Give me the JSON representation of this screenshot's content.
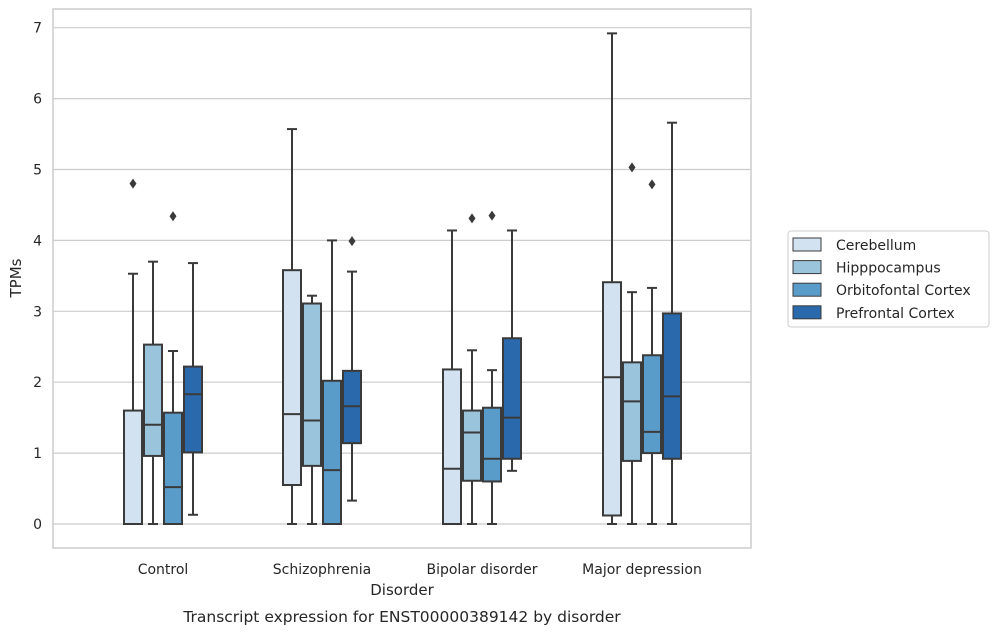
{
  "chart_data": {
    "type": "boxplot",
    "title": "",
    "caption": "Transcript expression for ENST00000389142 by disorder",
    "xlabel": "Disorder",
    "ylabel": "TPMs",
    "ylim": [
      -0.33,
      7.3
    ],
    "yticks": [
      0,
      1,
      2,
      3,
      4,
      5,
      6,
      7
    ],
    "grid": "horizontal",
    "legend_position": "right",
    "categories": [
      "Control",
      "Schizophrenia",
      "Bipolar disorder",
      "Major depression"
    ],
    "series": [
      {
        "name": "Cerebellum",
        "color": "#d2e2f1",
        "boxes": [
          {
            "whisker_low": 0,
            "q1": 0,
            "median": 0,
            "q3": 1.6,
            "whisker_high": 3.53,
            "outliers": [
              4.8
            ]
          },
          {
            "whisker_low": 0,
            "q1": 0.55,
            "median": 1.55,
            "q3": 3.58,
            "whisker_high": 5.57,
            "outliers": []
          },
          {
            "whisker_low": 0,
            "q1": 0,
            "median": 0.78,
            "q3": 2.18,
            "whisker_high": 4.14,
            "outliers": []
          },
          {
            "whisker_low": 0,
            "q1": 0.12,
            "median": 2.07,
            "q3": 3.41,
            "whisker_high": 6.92,
            "outliers": []
          }
        ]
      },
      {
        "name": "Hipppocampus",
        "color": "#9ac3dc",
        "boxes": [
          {
            "whisker_low": 0,
            "q1": 0.96,
            "median": 1.4,
            "q3": 2.53,
            "whisker_high": 3.7,
            "outliers": []
          },
          {
            "whisker_low": 0,
            "q1": 0.82,
            "median": 1.46,
            "q3": 3.11,
            "whisker_high": 3.22,
            "outliers": []
          },
          {
            "whisker_low": 0,
            "q1": 0.61,
            "median": 1.29,
            "q3": 1.6,
            "whisker_high": 2.45,
            "outliers": [
              4.31
            ]
          },
          {
            "whisker_low": 0,
            "q1": 0.89,
            "median": 1.73,
            "q3": 2.28,
            "whisker_high": 3.27,
            "outliers": [
              5.03
            ]
          }
        ]
      },
      {
        "name": "Orbitofontal Cortex",
        "color": "#5a9cc9",
        "boxes": [
          {
            "whisker_low": 0,
            "q1": 0,
            "median": 0.52,
            "q3": 1.57,
            "whisker_high": 2.44,
            "outliers": [
              4.34
            ]
          },
          {
            "whisker_low": 0,
            "q1": 0,
            "median": 0.76,
            "q3": 2.02,
            "whisker_high": 4.0,
            "outliers": []
          },
          {
            "whisker_low": 0,
            "q1": 0.6,
            "median": 0.92,
            "q3": 1.64,
            "whisker_high": 2.17,
            "outliers": [
              4.35
            ]
          },
          {
            "whisker_low": 0,
            "q1": 1.0,
            "median": 1.3,
            "q3": 2.38,
            "whisker_high": 3.33,
            "outliers": [
              4.79
            ]
          }
        ]
      },
      {
        "name": "Prefrontal Cortex",
        "color": "#2a6aac",
        "boxes": [
          {
            "whisker_low": 0.13,
            "q1": 1.01,
            "median": 1.83,
            "q3": 2.22,
            "whisker_high": 3.68,
            "outliers": []
          },
          {
            "whisker_low": 0.33,
            "q1": 1.14,
            "median": 1.66,
            "q3": 2.16,
            "whisker_high": 3.56,
            "outliers": [
              3.99
            ]
          },
          {
            "whisker_low": 0.75,
            "q1": 0.92,
            "median": 1.5,
            "q3": 2.62,
            "whisker_high": 4.14,
            "outliers": []
          },
          {
            "whisker_low": 0,
            "q1": 0.92,
            "median": 1.8,
            "q3": 2.97,
            "whisker_high": 5.66,
            "outliers": []
          }
        ]
      }
    ],
    "colors": {
      "frame": "#cccccc",
      "grid": "#cccccc",
      "box_edge": "#3a3a3a",
      "text": "#262626"
    }
  }
}
